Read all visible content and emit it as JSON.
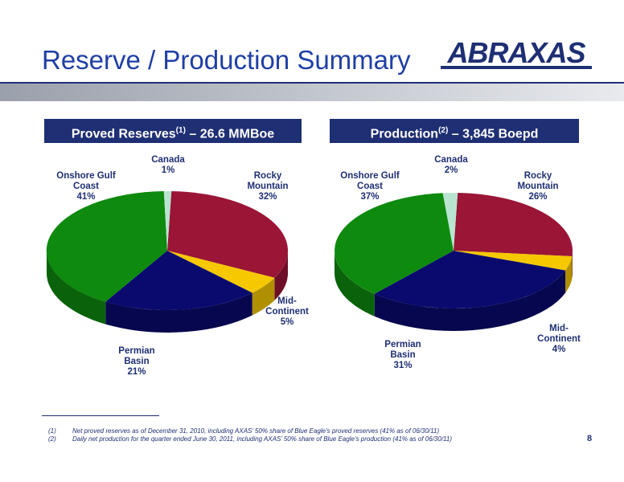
{
  "slide": {
    "title": "Reserve / Production Summary",
    "logo_text": "ABRAXAS",
    "page_number": "8"
  },
  "panels": {
    "left_header": {
      "text": "Proved Reserves",
      "sup": "(1)",
      "suffix": " – 26.6 MMBoe"
    },
    "right_header": {
      "text": "Production",
      "sup": "(2)",
      "suffix": " – 3,845 Boepd"
    }
  },
  "footnotes": [
    {
      "num": "(1)",
      "text": "Net proved reserves as of December 31, 2010, including AXAS’ 50% share of Blue Eagle’s proved reserves (41% as of 06/30/11)"
    },
    {
      "num": "(2)",
      "text": "Daily net production for the quarter ended June 30, 2011, including AXAS’ 50% share of Blue Eagle’s production (41% as of 06/30/11)"
    }
  ],
  "colors": {
    "Rocky Mountain": "#9a1536",
    "Mid-Continent": "#f5c800",
    "Permian Basin": "#0a0a6e",
    "Onshore Gulf Coast": "#0e8a0e",
    "Canada": "#b8e4d0",
    "accent": "#1f2f74",
    "title": "#1f3fa6"
  },
  "chart_data": [
    {
      "type": "pie",
      "title": "Proved Reserves(1) – 26.6 MMBoe",
      "slices": [
        {
          "label": "Rocky Mountain",
          "value": 32,
          "display": [
            "Rocky",
            "Mountain",
            "32%"
          ]
        },
        {
          "label": "Mid-Continent",
          "value": 5,
          "display": [
            "Mid-",
            "Continent",
            "5%"
          ]
        },
        {
          "label": "Permian Basin",
          "value": 21,
          "display": [
            "Permian",
            "Basin",
            "21%"
          ]
        },
        {
          "label": "Onshore Gulf Coast",
          "value": 41,
          "display": [
            "Onshore Gulf",
            "Coast",
            "41%"
          ]
        },
        {
          "label": "Canada",
          "value": 1,
          "display": [
            "Canada",
            "1%"
          ]
        }
      ]
    },
    {
      "type": "pie",
      "title": "Production(2) – 3,845 Boepd",
      "slices": [
        {
          "label": "Rocky Mountain",
          "value": 26,
          "display": [
            "Rocky",
            "Mountain",
            "26%"
          ]
        },
        {
          "label": "Mid-Continent",
          "value": 4,
          "display": [
            "Mid-",
            "Continent",
            "4%"
          ]
        },
        {
          "label": "Permian Basin",
          "value": 31,
          "display": [
            "Permian",
            "Basin",
            "31%"
          ]
        },
        {
          "label": "Onshore Gulf Coast",
          "value": 37,
          "display": [
            "Onshore Gulf",
            "Coast",
            "37%"
          ]
        },
        {
          "label": "Canada",
          "value": 2,
          "display": [
            "Canada",
            "2%"
          ]
        }
      ]
    }
  ]
}
